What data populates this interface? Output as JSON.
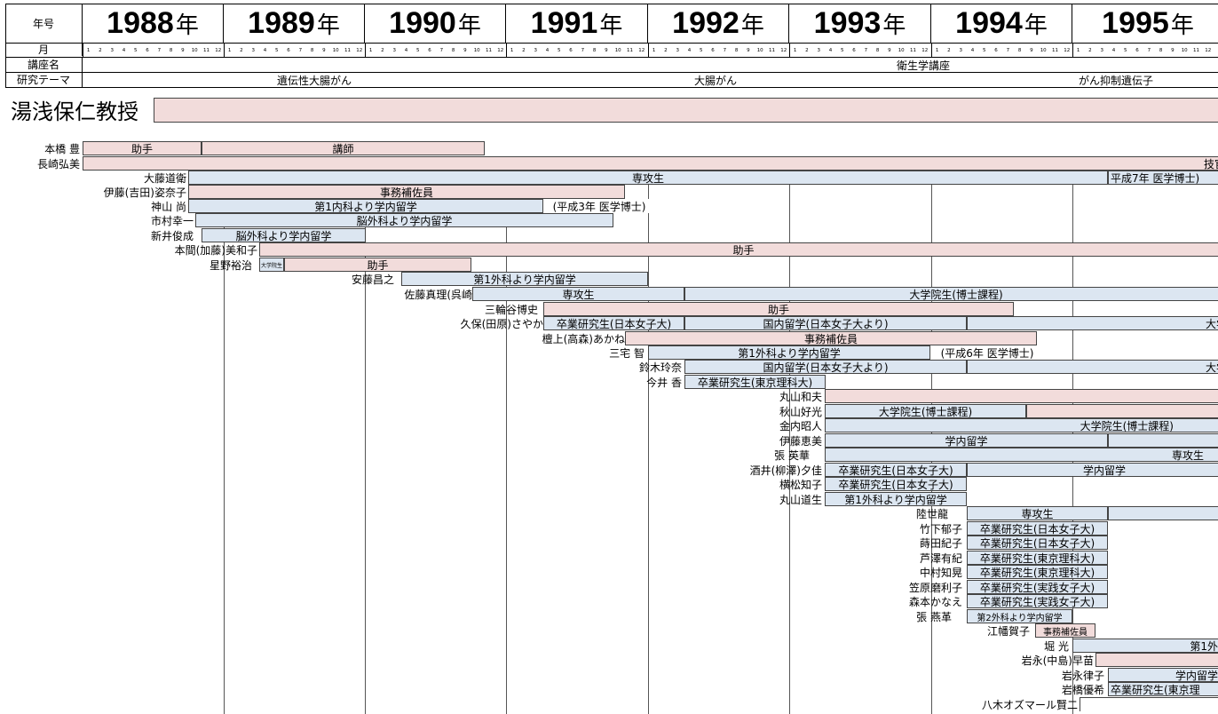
{
  "header": {
    "year_label": "年号",
    "month_label": "月",
    "course_label": "講座名",
    "theme_label": "研究テーマ",
    "years": [
      "1988",
      "1989",
      "1990",
      "1991",
      "1992",
      "1993",
      "1994",
      "1995"
    ],
    "nen": "年",
    "months": [
      "1",
      "2",
      "3",
      "4",
      "5",
      "6",
      "7",
      "8",
      "9",
      "10",
      "11",
      "12"
    ],
    "course_name": "衛生学講座",
    "themes": [
      "遺伝性大腸がん",
      "大腸がん",
      "がん抑制遺伝子"
    ]
  },
  "professor": {
    "name": "湯浅保仁教授"
  },
  "members": [
    {
      "name": "本橋 豊"
    },
    {
      "name": "長崎弘美"
    },
    {
      "name": "大藤道衛"
    },
    {
      "name": "伊藤(吉田)姿奈子"
    },
    {
      "name": "神山 尚"
    },
    {
      "name": "市村幸一"
    },
    {
      "name": "新井俊成"
    },
    {
      "name": "本間(加藤)美和子"
    },
    {
      "name": "星野裕治"
    },
    {
      "name": "安藤昌之"
    },
    {
      "name": "佐藤真理(呉崎"
    },
    {
      "name": "三輪谷博史"
    },
    {
      "name": "久保(田原)さやか"
    },
    {
      "name": "檀上(高森)あかね"
    },
    {
      "name": "三宅 智"
    },
    {
      "name": "鈴木玲奈"
    },
    {
      "name": "今井 香"
    },
    {
      "name": "丸山和夫"
    },
    {
      "name": "秋山好光"
    },
    {
      "name": "金内昭人"
    },
    {
      "name": "伊藤恵美"
    },
    {
      "name": "張 英華"
    },
    {
      "name": "酒井(柳澤)夕佳"
    },
    {
      "name": "横松知子"
    },
    {
      "name": "丸山道生"
    },
    {
      "name": "陸世龍"
    },
    {
      "name": "竹下郁子"
    },
    {
      "name": "蒔田紀子"
    },
    {
      "name": "芦澤有紀"
    },
    {
      "name": "中村知晃"
    },
    {
      "name": "笠原磨利子"
    },
    {
      "name": "森本かなえ"
    },
    {
      "name": "張 燕革"
    },
    {
      "name": "江幡賀子"
    },
    {
      "name": "堀 光"
    },
    {
      "name": "岩永(中島)早苗"
    },
    {
      "name": "岩永律子"
    },
    {
      "name": "岩橋優希"
    },
    {
      "name": "八木オズマール賢二"
    }
  ],
  "labels": {
    "joshu": "助手",
    "koushi": "講師",
    "gikan": "技官",
    "senkosei": "専攻生",
    "igaku_h7": "平成7年 医学博士)",
    "jimu": "事務補佐員",
    "naika1": "第1内科より学内留学",
    "h3": "(平成3年 医学博士)",
    "noge": "脳外科より学内留学",
    "noge2": "脳外科より学内留学",
    "daigakuin_s": "大学院生",
    "geka1": "第1外科より学内留学",
    "daigakuin_hakushi": "大学院生(博士課程)",
    "sotsugyo_joshi": "卒業研究生(日本女子大)",
    "kokunai": "国内留学(日本女子大より)",
    "daiga": "大学",
    "h6": "(平成6年 医学博士)",
    "sotsugyo_rika": "卒業研究生(東京理科大)",
    "gakunai": "学内留学",
    "sotsugyo_jissen": "卒業研究生(実践女子大)",
    "geka2": "第2外科より学内留学",
    "daiichi": "第1外",
    "sotsugyo_rika_cut": "卒業研究生(東京理"
  }
}
